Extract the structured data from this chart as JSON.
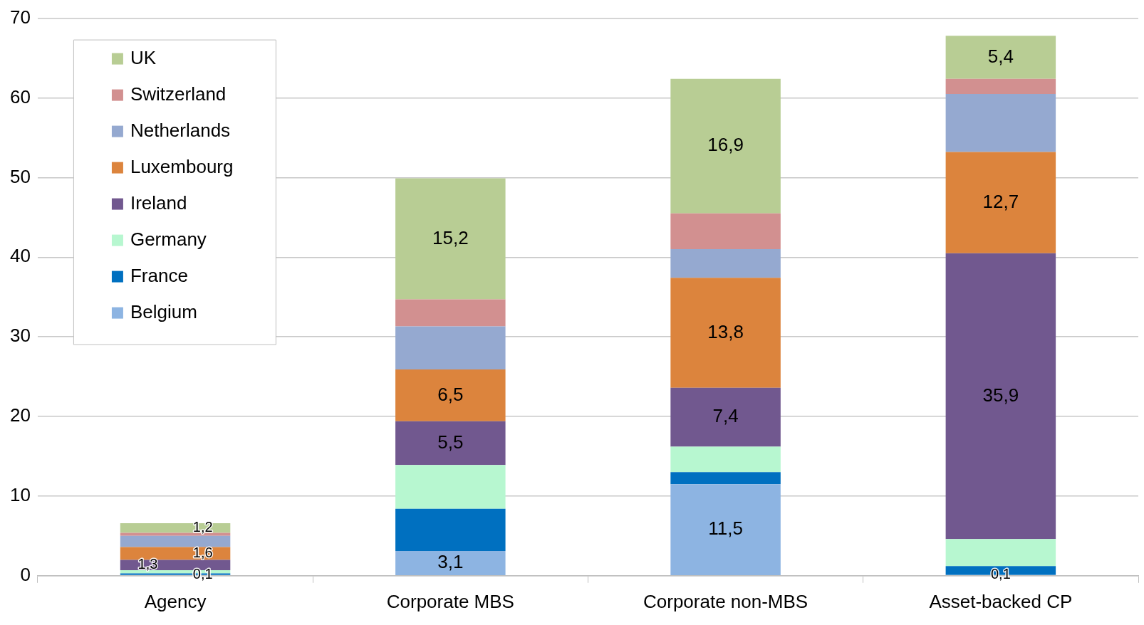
{
  "chart_data": {
    "type": "bar",
    "stacked": true,
    "categories": [
      "Agency",
      "Corporate MBS",
      "Corporate non-MBS",
      "Asset-backed CP"
    ],
    "ylim": [
      0,
      70
    ],
    "yticks": [
      0,
      10,
      20,
      30,
      40,
      50,
      60,
      70
    ],
    "grid": "y",
    "legend": "top left",
    "series": [
      {
        "name": "Belgium",
        "color": "#8db4e2",
        "values": [
          0.1,
          3.1,
          11.5,
          0.1
        ],
        "value_labels": [
          "0,1",
          "3,1",
          "11,5",
          "0,1"
        ]
      },
      {
        "name": "France",
        "color": "#0070c0",
        "values": [
          0.2,
          5.3,
          1.5,
          1.1
        ]
      },
      {
        "name": "Germany",
        "color": "#b7f7d0",
        "values": [
          0.4,
          5.5,
          3.2,
          3.4
        ]
      },
      {
        "name": "Ireland",
        "color": "#71588f",
        "values": [
          1.3,
          5.5,
          7.4,
          35.9
        ],
        "value_labels": [
          "1,3",
          "5,5",
          "7,4",
          "35,9"
        ]
      },
      {
        "name": "Luxembourg",
        "color": "#dc843d",
        "values": [
          1.6,
          6.5,
          13.8,
          12.7
        ],
        "value_labels": [
          "1,6",
          "6,5",
          "13,8",
          "12,7"
        ]
      },
      {
        "name": "Netherlands",
        "color": "#95a9d0",
        "values": [
          1.4,
          5.4,
          3.6,
          7.3
        ]
      },
      {
        "name": "Switzerland",
        "color": "#d29090",
        "values": [
          0.4,
          3.4,
          4.5,
          1.9
        ]
      },
      {
        "name": "UK",
        "color": "#b8cd94",
        "values": [
          1.2,
          15.2,
          16.9,
          5.4
        ],
        "value_labels": [
          "1,2",
          "15,2",
          "16,9",
          "5,4"
        ]
      }
    ]
  }
}
